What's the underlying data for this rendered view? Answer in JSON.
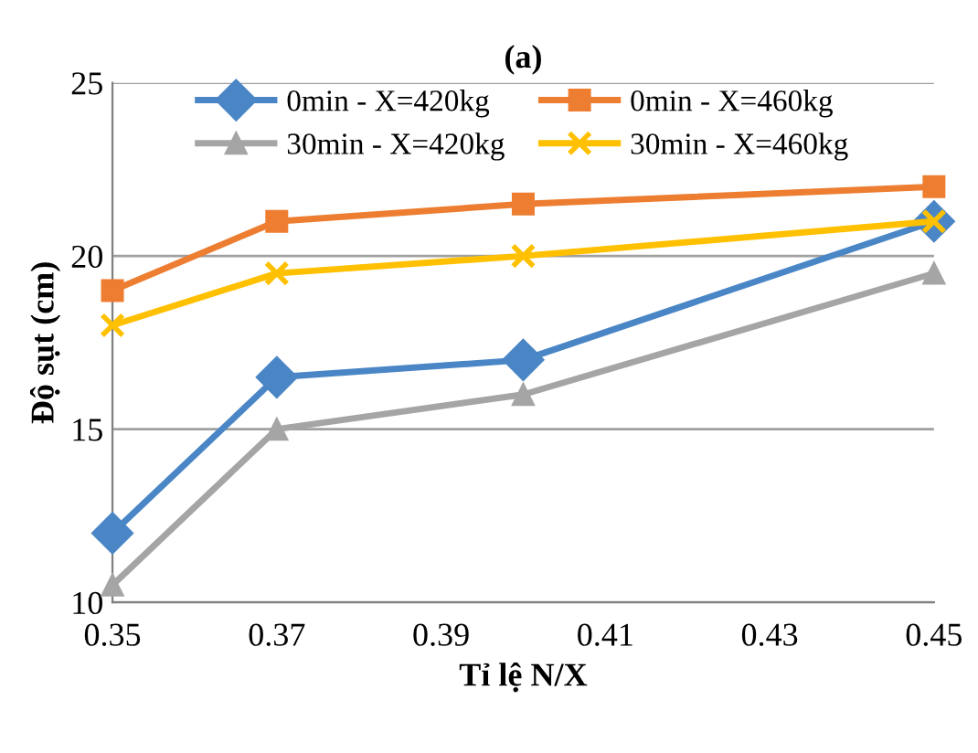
{
  "chart_data": {
    "type": "line",
    "title": "(a)",
    "xlabel": "Tỉ lệ N/X",
    "ylabel": "Độ sụt (cm)",
    "x": [
      0.35,
      0.37,
      0.4,
      0.45
    ],
    "series": [
      {
        "name": "0min - X=420kg",
        "color": "#4a86c6",
        "marker": "diamond",
        "values": [
          12,
          16.5,
          17,
          21
        ]
      },
      {
        "name": "0min - X=460kg",
        "color": "#ed7d31",
        "marker": "square",
        "values": [
          19,
          21,
          21.5,
          22
        ]
      },
      {
        "name": "30min - X=420kg",
        "color": "#a5a5a5",
        "marker": "triangle",
        "values": [
          10.5,
          15,
          16,
          19.5
        ]
      },
      {
        "name": "30min - X=460kg",
        "color": "#ffc000",
        "marker": "cross",
        "values": [
          18,
          19.5,
          20,
          21
        ]
      }
    ],
    "xlim": [
      0.35,
      0.45
    ],
    "xticks": [
      0.35,
      0.37,
      0.39,
      0.41,
      0.43,
      0.45
    ],
    "ylim": [
      10,
      25
    ],
    "yticks": [
      10,
      15,
      20,
      25
    ],
    "grid": "y",
    "legend": "top",
    "line_style": "solid"
  }
}
